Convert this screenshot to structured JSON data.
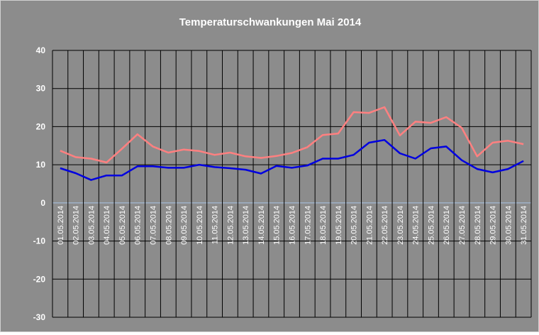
{
  "chart_data": {
    "type": "line",
    "title": "Temperaturschwankungen Mai 2014",
    "xlabel": "",
    "ylabel": "",
    "ylim": [
      -30,
      40
    ],
    "yticks": [
      40,
      30,
      20,
      10,
      0,
      -10,
      -20,
      -30
    ],
    "grid": true,
    "legend": "none",
    "colors": {
      "plot_background": "#8c8c8c",
      "grid": "#000000",
      "zero_line": "#a8c4e6",
      "text": "#ffffff"
    },
    "categories": [
      "01.05.2014",
      "02.05.2014",
      "03.05.2014",
      "04.05.2014",
      "05.05.2014",
      "06.05.2014",
      "07.05.2014",
      "08.05.2014",
      "09.05.2014",
      "10.05.2014",
      "11.05.2014",
      "12.05.2014",
      "13.05.2014",
      "14.05.2014",
      "15.05.2014",
      "16.05.2014",
      "17.05.2014",
      "18.05.2014",
      "19.05.2014",
      "20.05.2014",
      "21.05.2014",
      "22.05.2014",
      "23.05.2014",
      "24.05.2014",
      "25.05.2014",
      "26.05.2014",
      "27.05.2014",
      "28.05.2014",
      "29.05.2014",
      "30.05.2014",
      "31.05.2014"
    ],
    "series": [
      {
        "color": "#ff8080",
        "values": [
          13.7,
          12.0,
          11.6,
          10.6,
          14.2,
          18.0,
          14.8,
          13.2,
          14.0,
          13.6,
          12.6,
          13.2,
          12.2,
          11.8,
          12.3,
          13.1,
          14.6,
          17.8,
          18.2,
          23.8,
          23.6,
          25.1,
          17.7,
          21.3,
          21.0,
          22.5,
          19.7,
          12.2,
          15.8,
          16.3,
          15.4
        ]
      },
      {
        "color": "#0000e0",
        "values": [
          9.1,
          7.8,
          6.0,
          7.2,
          7.2,
          9.6,
          9.6,
          9.2,
          9.2,
          10.0,
          9.4,
          9.1,
          8.7,
          7.7,
          9.7,
          9.2,
          9.8,
          11.6,
          11.6,
          12.6,
          15.8,
          16.5,
          13.0,
          11.6,
          14.3,
          14.8,
          11.2,
          8.9,
          8.0,
          8.9,
          11.0
        ]
      }
    ]
  }
}
